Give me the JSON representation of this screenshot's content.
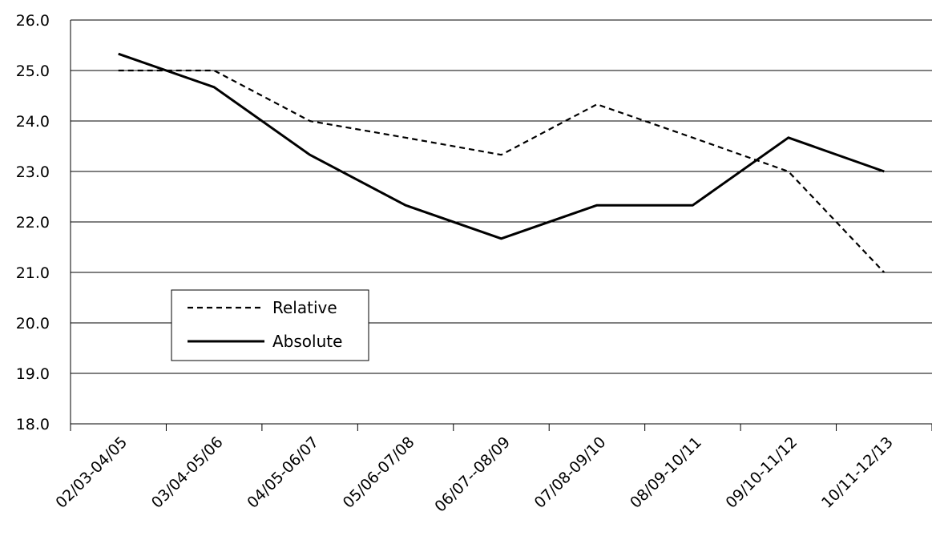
{
  "chart_data": {
    "type": "line",
    "title": "",
    "xlabel": "",
    "ylabel": "",
    "categories": [
      "02/03-04/05",
      "03/04-05/06",
      "04/05-06/07",
      "05/06-07/08",
      "06/07--08/09",
      "07/08-09/10",
      "08/09-10/11",
      "09/10-11/12",
      "10/11-12/13"
    ],
    "y_ticks": [
      "18.0",
      "19.0",
      "20.0",
      "21.0",
      "22.0",
      "23.0",
      "24.0",
      "25.0",
      "26.0"
    ],
    "ylim": [
      18,
      26
    ],
    "grid": "horizontal",
    "legend_position": "lower-left",
    "series": [
      {
        "name": "Relative",
        "style": "dashed",
        "color": "#000000",
        "values": [
          25.0,
          25.0,
          24.0,
          23.67,
          23.33,
          24.33,
          23.67,
          23.0,
          21.0
        ]
      },
      {
        "name": "Absolute",
        "style": "solid",
        "color": "#000000",
        "values": [
          25.33,
          24.67,
          23.33,
          22.33,
          21.67,
          22.33,
          22.33,
          23.67,
          23.0
        ]
      }
    ]
  }
}
